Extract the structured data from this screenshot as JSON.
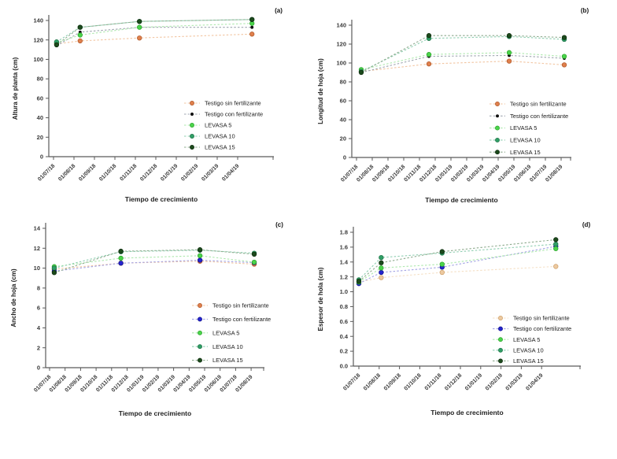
{
  "figure": {
    "background": "#ffffff",
    "axis_color": "#5a5a5a",
    "tick_text_color": "#3a3a3a",
    "legend_text_color": "#1a1a1a"
  },
  "chart_data": [
    {
      "id": "a",
      "panel_label": "(a)",
      "type": "line",
      "xlabel": "Tiempo de crecimiento",
      "ylabel": "Altura de planta (cm)",
      "ylim": [
        0,
        140
      ],
      "ytick_step": 20,
      "y_decimals": 0,
      "grid": false,
      "legend_position": "inside-right-lower",
      "x_tick_labels": [
        "01/07/18",
        "01/08/18",
        "01/09/18",
        "01/10/18",
        "01/11/18",
        "01/12/18",
        "01/01/19",
        "01/02/19",
        "01/03/19",
        "01/04/19"
      ],
      "point_x": [
        0.15,
        1.3,
        4.2,
        9.7
      ],
      "series": [
        {
          "name": "Testigo sin fertilizante",
          "values": [
            116,
            119,
            122,
            126
          ],
          "marker_color": "#DF7F4C",
          "marker_edge": "#AE5526",
          "line_color": "#F2C5A1",
          "marker_size": 2.8
        },
        {
          "name": "Testigo con fertilizante",
          "values": [
            114,
            128,
            133,
            133
          ],
          "marker_color": "#161616",
          "marker_edge": "#000000",
          "line_color": "#9FA6B0",
          "marker_size": 1.6
        },
        {
          "name": "LEVASA 5",
          "values": [
            117,
            125,
            133,
            137
          ],
          "marker_color": "#4BD44B",
          "marker_edge": "#2AA22A",
          "line_color": "#AEE8AE",
          "marker_size": 2.8
        },
        {
          "name": "LEVASA 10",
          "values": [
            118,
            133,
            139,
            141
          ],
          "marker_color": "#2F9E65",
          "marker_edge": "#1E7347",
          "line_color": "#90CFB2",
          "marker_size": 2.8
        },
        {
          "name": "LEVASA 15",
          "values": [
            115,
            133,
            139,
            141
          ],
          "marker_color": "#1C4A1C",
          "marker_edge": "#0E2C0E",
          "line_color": "#8FAC8F",
          "marker_size": 2.8
        }
      ]
    },
    {
      "id": "b",
      "panel_label": "(b)",
      "type": "line",
      "xlabel": "Tiempo de crecimiento",
      "ylabel": "Longitud de hoja (cm)",
      "ylim": [
        0,
        140
      ],
      "ytick_step": 20,
      "y_decimals": 0,
      "grid": false,
      "legend_position": "inside-right-lower",
      "x_tick_labels": [
        "01/07/18",
        "01/08/18",
        "01/09/18",
        "01/10/18",
        "01/11/18",
        "01/12/18",
        "01/01/19",
        "01/02/19",
        "01/03/19",
        "01/04/19",
        "01/05/19",
        "01/06/19",
        "01/07/19",
        "01/08/19"
      ],
      "point_x": [
        0.3,
        4.6,
        9.7,
        13.2
      ],
      "series": [
        {
          "name": "Testigo sin fertilizante",
          "values": [
            91,
            99,
            102,
            98
          ],
          "marker_color": "#DF7F4C",
          "marker_edge": "#AE5526",
          "line_color": "#F2C5A1",
          "marker_size": 2.8
        },
        {
          "name": "Testigo con fertilizante",
          "values": [
            90,
            107,
            108,
            105
          ],
          "marker_color": "#161616",
          "marker_edge": "#000000",
          "line_color": "#9FA6B0",
          "marker_size": 1.6
        },
        {
          "name": "LEVASA 5",
          "values": [
            93,
            109,
            111,
            107
          ],
          "marker_color": "#4BD44B",
          "marker_edge": "#2AA22A",
          "line_color": "#AEE8AE",
          "marker_size": 2.8
        },
        {
          "name": "LEVASA 10",
          "values": [
            91,
            126,
            128,
            125
          ],
          "marker_color": "#2F9E65",
          "marker_edge": "#1E7347",
          "line_color": "#90CFB2",
          "marker_size": 2.8
        },
        {
          "name": "LEVASA 15",
          "values": [
            90,
            129,
            129,
            127
          ],
          "marker_color": "#1C4A1C",
          "marker_edge": "#0E2C0E",
          "line_color": "#8FAC8F",
          "marker_size": 2.8
        }
      ]
    },
    {
      "id": "c",
      "panel_label": "(c)",
      "type": "line",
      "xlabel": "Tiempo de crecimiento",
      "ylabel": "Ancho de hoja (cm)",
      "ylim": [
        0,
        14
      ],
      "ytick_step": 2,
      "y_decimals": 0,
      "grid": false,
      "legend_position": "inside-right-lower",
      "x_tick_labels": [
        "01/07/18",
        "01/08/18",
        "01/09/18",
        "01/10/18",
        "01/11/18",
        "01/12/18",
        "01/01/19",
        "01/02/19",
        "01/03/19",
        "01/04/19",
        "01/05/19",
        "01/06/19",
        "01/07/19",
        "01/08/19"
      ],
      "point_x": [
        0.3,
        4.6,
        9.7,
        13.2
      ],
      "series": [
        {
          "name": "Testigo sin fertilizante",
          "values": [
            9.9,
            10.5,
            10.7,
            10.4
          ],
          "marker_color": "#DF7F4C",
          "marker_edge": "#AE5526",
          "line_color": "#F2C5A1",
          "marker_size": 2.8
        },
        {
          "name": "Testigo con fertilizante",
          "values": [
            9.7,
            10.5,
            10.8,
            10.55
          ],
          "marker_color": "#2424CE",
          "marker_edge": "#12128C",
          "line_color": "#A3A3E4",
          "marker_size": 2.8
        },
        {
          "name": "LEVASA 5",
          "values": [
            10.15,
            11.0,
            11.25,
            10.6
          ],
          "marker_color": "#4BD44B",
          "marker_edge": "#2AA22A",
          "line_color": "#AEE8AE",
          "marker_size": 2.8
        },
        {
          "name": "LEVASA 10",
          "values": [
            10.0,
            11.65,
            11.8,
            11.5
          ],
          "marker_color": "#2F9E65",
          "marker_edge": "#1E7347",
          "line_color": "#90CFB2",
          "marker_size": 2.8
        },
        {
          "name": "LEVASA 15",
          "values": [
            9.55,
            11.7,
            11.85,
            11.4
          ],
          "marker_color": "#1C4A1C",
          "marker_edge": "#0E2C0E",
          "line_color": "#8FAC8F",
          "marker_size": 2.8
        }
      ]
    },
    {
      "id": "d",
      "panel_label": "(d)",
      "type": "line",
      "xlabel": "Tiempo de crecimiento",
      "ylabel": "Espesor de hola (cm)",
      "ylim": [
        0,
        1.8
      ],
      "ytick_step": 0.2,
      "y_decimals": 1,
      "grid": false,
      "legend_position": "inside-right-lower",
      "x_tick_labels": [
        "01/07/18",
        "01/08/18",
        "01/09/18",
        "01/10/18",
        "01/11/18",
        "01/12/18",
        "01/01/19",
        "01/02/19",
        "01/03/19",
        "01/04/19"
      ],
      "point_x": [
        0.0,
        1.1,
        4.1,
        9.7
      ],
      "series": [
        {
          "name": "Testigo sin fertilizante",
          "values": [
            1.13,
            1.19,
            1.26,
            1.34
          ],
          "marker_color": "#ECC9A0",
          "marker_edge": "#CE9E66",
          "line_color": "#F5E0C6",
          "marker_size": 2.8
        },
        {
          "name": "Testigo con fertilizante",
          "values": [
            1.11,
            1.26,
            1.33,
            1.61
          ],
          "marker_color": "#2424CE",
          "marker_edge": "#12128C",
          "line_color": "#A3A3E4",
          "marker_size": 2.8
        },
        {
          "name": "LEVASA 5",
          "values": [
            1.13,
            1.32,
            1.37,
            1.58
          ],
          "marker_color": "#4BD44B",
          "marker_edge": "#2AA22A",
          "line_color": "#AEE8AE",
          "marker_size": 2.8
        },
        {
          "name": "LEVASA 10",
          "values": [
            1.16,
            1.46,
            1.52,
            1.64
          ],
          "marker_color": "#2F9E65",
          "marker_edge": "#1E7347",
          "line_color": "#90CFB2",
          "marker_size": 2.8
        },
        {
          "name": "LEVASA 15",
          "values": [
            1.14,
            1.39,
            1.54,
            1.7
          ],
          "marker_color": "#1C4A1C",
          "marker_edge": "#0E2C0E",
          "line_color": "#8FAC8F",
          "marker_size": 2.8
        }
      ]
    }
  ]
}
